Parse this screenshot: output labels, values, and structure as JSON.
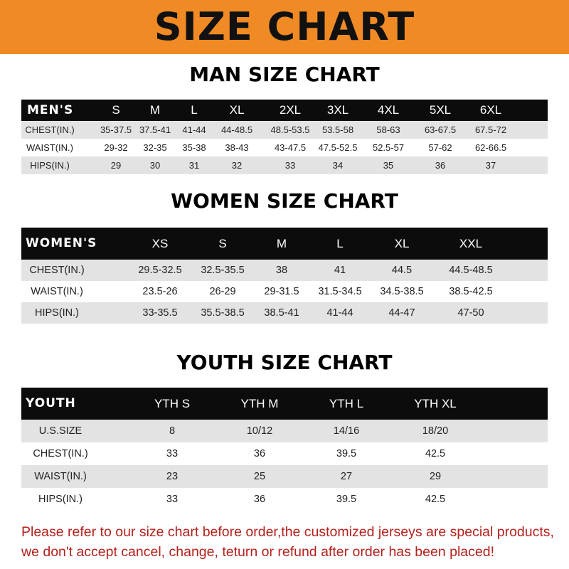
{
  "banner_title": "SIZE CHART",
  "men": {
    "title": "MAN SIZE CHART",
    "header": [
      "MEN'S",
      "S",
      "M",
      "L",
      "XL",
      "2XL",
      "3XL",
      "4XL",
      "5XL",
      "6XL"
    ],
    "rows": [
      [
        "CHEST(IN.)",
        "35-37.5",
        "37.5-41",
        "41-44",
        "44-48.5",
        "48.5-53.5",
        "53.5-58",
        "58-63",
        "63-67.5",
        "67.5-72"
      ],
      [
        "WAIST(IN.)",
        "29-32",
        "32-35",
        "35-38",
        "38-43",
        "43-47.5",
        "47.5-52.5",
        "52.5-57",
        "57-62",
        "62-66.5"
      ],
      [
        "HIPS(IN.)",
        "29",
        "30",
        "31",
        "32",
        "33",
        "34",
        "35",
        "36",
        "37"
      ]
    ]
  },
  "women": {
    "title": "WOMEN SIZE CHART",
    "header": [
      "WOMEN'S",
      "XS",
      "S",
      "M",
      "L",
      "XL",
      "XXL"
    ],
    "rows": [
      [
        "CHEST(IN.)",
        "29.5-32.5",
        "32.5-35.5",
        "38",
        "41",
        "44.5",
        "44.5-48.5"
      ],
      [
        "WAIST(IN.)",
        "23.5-26",
        "26-29",
        "29-31.5",
        "31.5-34.5",
        "34.5-38.5",
        "38.5-42.5"
      ],
      [
        "HIPS(IN.)",
        "33-35.5",
        "35.5-38.5",
        "38.5-41",
        "41-44",
        "44-47",
        "47-50"
      ]
    ]
  },
  "youth": {
    "title": "YOUTH SIZE CHART",
    "header": [
      "YOUTH",
      "YTH S",
      "YTH M",
      "YTH L",
      "YTH XL"
    ],
    "rows": [
      [
        "U.S.SIZE",
        "8",
        "10/12",
        "14/16",
        "18/20"
      ],
      [
        "CHEST(IN.)",
        "33",
        "36",
        "39.5",
        "42.5"
      ],
      [
        "WAIST(IN.)",
        "23",
        "25",
        "27",
        "29"
      ],
      [
        "HIPS(IN.)",
        "33",
        "36",
        "39.5",
        "42.5"
      ]
    ]
  },
  "footer": {
    "line1": "Please refer to our size chart before order,the customized jerseys are special products,",
    "line2": "we don't accept cancel, change, teturn or refund after order has been placed!"
  },
  "colors": {
    "banner": "#f08a24",
    "header_row": "#0c0c0c",
    "footer_text": "#b5211c"
  }
}
